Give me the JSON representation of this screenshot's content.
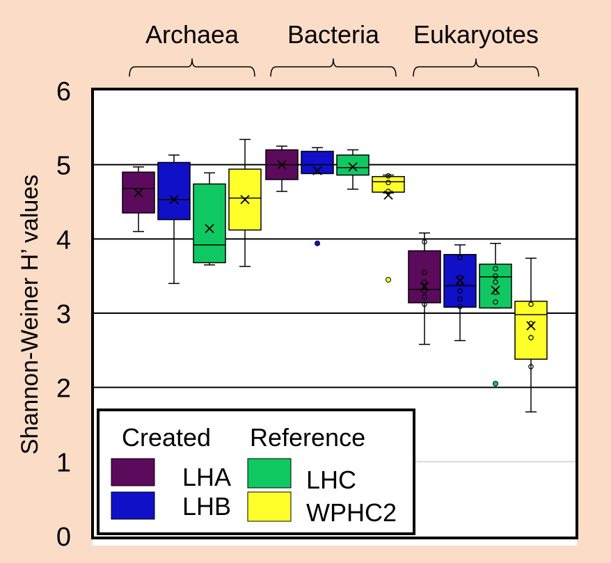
{
  "chart_data": {
    "type": "box",
    "ylabel": "Shannon-Weiner H’ values",
    "ylim": [
      0,
      6
    ],
    "yticks": [
      0,
      1,
      2,
      3,
      4,
      5,
      6
    ],
    "grid": true,
    "groups": [
      "Archaea",
      "Bacteria",
      "Eukaryotes"
    ],
    "legend": {
      "position": "bottom-left",
      "headers": [
        "Created",
        "Reference"
      ],
      "entries": [
        {
          "label": "LHA",
          "color": "#5c0a5c"
        },
        {
          "label": "LHB",
          "color": "#1010c8"
        },
        {
          "label": "LHC",
          "color": "#10c862"
        },
        {
          "label": "WPHC2",
          "color": "#ffff2a"
        }
      ]
    },
    "boxes": [
      {
        "group": "Archaea",
        "series": "LHA",
        "min": 4.1,
        "q1": 4.35,
        "median": 4.68,
        "q3": 4.9,
        "max": 4.97,
        "mean": 4.62,
        "outliers": [],
        "points": []
      },
      {
        "group": "Archaea",
        "series": "LHB",
        "min": 3.4,
        "q1": 4.26,
        "median": 4.53,
        "q3": 5.03,
        "max": 5.13,
        "mean": 4.53,
        "outliers": [],
        "points": []
      },
      {
        "group": "Archaea",
        "series": "LHC",
        "min": 3.65,
        "q1": 3.68,
        "median": 3.92,
        "q3": 4.74,
        "max": 4.89,
        "mean": 4.14,
        "outliers": [],
        "points": []
      },
      {
        "group": "Archaea",
        "series": "WPHC2",
        "min": 3.63,
        "q1": 4.12,
        "median": 4.55,
        "q3": 4.94,
        "max": 5.34,
        "mean": 4.53,
        "outliers": [],
        "points": []
      },
      {
        "group": "Bacteria",
        "series": "LHA",
        "min": 4.64,
        "q1": 4.8,
        "median": 5.0,
        "q3": 5.2,
        "max": 5.25,
        "mean": 5.0,
        "outliers": [],
        "points": []
      },
      {
        "group": "Bacteria",
        "series": "LHB",
        "min": 4.88,
        "q1": 4.88,
        "median": 5.0,
        "q3": 5.18,
        "max": 5.23,
        "mean": 4.92,
        "outliers": [
          3.94
        ],
        "points": []
      },
      {
        "group": "Bacteria",
        "series": "LHC",
        "min": 4.67,
        "q1": 4.86,
        "median": 4.96,
        "q3": 5.13,
        "max": 5.2,
        "mean": 4.97,
        "outliers": [],
        "points": []
      },
      {
        "group": "Bacteria",
        "series": "WPHC2",
        "min": 4.62,
        "q1": 4.63,
        "median": 4.77,
        "q3": 4.84,
        "max": 4.86,
        "mean": 4.59,
        "outliers": [
          3.45
        ],
        "points": [
          4.85,
          4.76,
          4.64
        ]
      },
      {
        "group": "Eukaryotes",
        "series": "LHA",
        "min": 2.58,
        "q1": 3.14,
        "median": 3.32,
        "q3": 3.84,
        "max": 4.08,
        "mean": 3.36,
        "outliers": [],
        "points": [
          3.96,
          3.55,
          3.42,
          3.3,
          3.22,
          3.12
        ]
      },
      {
        "group": "Eukaryotes",
        "series": "LHB",
        "min": 2.63,
        "q1": 3.08,
        "median": 3.37,
        "q3": 3.79,
        "max": 3.92,
        "mean": 3.44,
        "outliers": [],
        "points": [
          3.75,
          3.48,
          3.41,
          3.3,
          3.19,
          3.09
        ]
      },
      {
        "group": "Eukaryotes",
        "series": "LHC",
        "min": 3.07,
        "q1": 3.07,
        "median": 3.49,
        "q3": 3.66,
        "max": 3.94,
        "mean": 3.31,
        "outliers": [
          2.05
        ],
        "points": [
          3.6,
          3.5,
          3.42,
          3.28,
          3.15
        ]
      },
      {
        "group": "Eukaryotes",
        "series": "WPHC2",
        "min": 1.67,
        "q1": 2.38,
        "median": 2.98,
        "q3": 3.16,
        "max": 3.74,
        "mean": 2.83,
        "outliers": [],
        "points": [
          3.12,
          2.86,
          2.67,
          2.28
        ]
      }
    ]
  }
}
